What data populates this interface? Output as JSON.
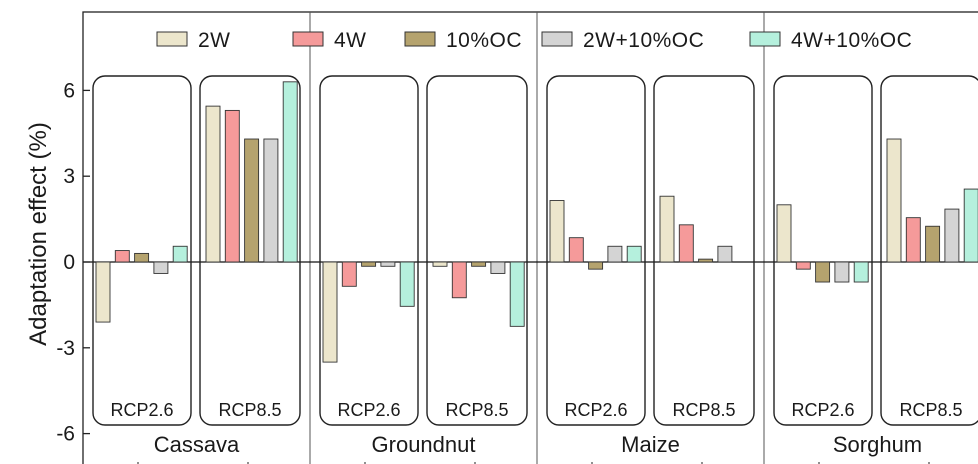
{
  "chart_data": {
    "type": "bar",
    "ylabel": "Adaptation effect (%)",
    "ylim": [
      -6.6,
      8.3
    ],
    "yticks": [
      -6,
      -3,
      0,
      3,
      6
    ],
    "ytick_labels": [
      "-6",
      "-3",
      "0",
      "3",
      "6"
    ],
    "legend_position": "top",
    "series": [
      {
        "name": "2W",
        "color": "#ece6cc"
      },
      {
        "name": "4W",
        "color": "#f59a9a"
      },
      {
        "name": "10%OC",
        "color": "#b5a36e"
      },
      {
        "name": "2W+10%OC",
        "color": "#d4d4d4"
      },
      {
        "name": "4W+10%OC",
        "color": "#b5f0dd"
      }
    ],
    "groups": [
      {
        "crop": "Cassava",
        "scenarios": [
          {
            "scenario": "RCP2.6",
            "values": [
              -2.1,
              0.4,
              0.3,
              -0.4,
              0.55
            ]
          },
          {
            "scenario": "RCP8.5",
            "values": [
              5.45,
              5.3,
              4.3,
              4.3,
              6.3
            ]
          }
        ]
      },
      {
        "crop": "Groundnut",
        "scenarios": [
          {
            "scenario": "RCP2.6",
            "values": [
              -3.5,
              -0.85,
              -0.15,
              -0.15,
              -1.55
            ]
          },
          {
            "scenario": "RCP8.5",
            "values": [
              -0.15,
              -1.25,
              -0.15,
              -0.4,
              -2.25
            ]
          }
        ]
      },
      {
        "crop": "Maize",
        "scenarios": [
          {
            "scenario": "RCP2.6",
            "values": [
              2.15,
              0.85,
              -0.25,
              0.55,
              0.55
            ]
          },
          {
            "scenario": "RCP8.5",
            "values": [
              2.3,
              1.3,
              0.1,
              0.55,
              0.0
            ]
          }
        ]
      },
      {
        "crop": "Sorghum",
        "scenarios": [
          {
            "scenario": "RCP2.6",
            "values": [
              2.0,
              -0.25,
              -0.7,
              -0.7,
              -0.7
            ]
          },
          {
            "scenario": "RCP8.5",
            "values": [
              4.3,
              1.55,
              1.25,
              1.85,
              2.55
            ]
          }
        ]
      }
    ]
  }
}
